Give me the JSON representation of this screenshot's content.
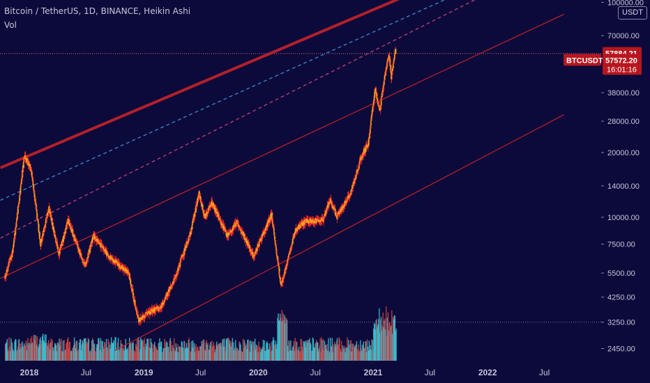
{
  "header": {
    "symbol_line": "Bitcoin / TetherUS, 1D, BINANCE, Heikin Ashi",
    "volume_label": "Vol"
  },
  "currency_badge": "USDT",
  "price_tags": {
    "high_value": "57884.21",
    "ticker": "BTCUSDT",
    "last_value": "57572.20",
    "countdown": "16:01:16"
  },
  "colors": {
    "background": "#0c0a3a",
    "channel_line": "#b3202a",
    "dashed_median": "#c0407a",
    "dashed_blue": "#3a8ad8",
    "candle_body": "#f0a020",
    "candle_outline": "#ff2a2a",
    "volume_up": "#3ec8d8",
    "volume_down": "#d04848",
    "axis_text": "#c8c6dc",
    "tag_red": "#b8161e"
  },
  "chart_data": {
    "type": "candlestick",
    "symbol": "Bitcoin / TetherUS",
    "interval": "1D",
    "exchange": "BINANCE",
    "style": "Heikin Ashi",
    "y_scale": "log",
    "ylim": [
      2200,
      100000
    ],
    "y_ticks": [
      "100000.00",
      "70000.00",
      "38000.00",
      "28000.00",
      "20000.00",
      "14000.00",
      "10000.00",
      "7500.00",
      "5500.00",
      "4250.00",
      "3250.00",
      "2450.00"
    ],
    "x_ticks": [
      "2018",
      "Jul",
      "2019",
      "Jul",
      "2020",
      "Jul",
      "2021",
      "Jul",
      "2022",
      "Jul"
    ],
    "price_key_points": [
      [
        "2017-10-15",
        5200
      ],
      [
        "2017-11-10",
        7000
      ],
      [
        "2017-12-17",
        19500
      ],
      [
        "2018-01-08",
        16500
      ],
      [
        "2018-02-06",
        7500
      ],
      [
        "2018-03-05",
        11000
      ],
      [
        "2018-04-06",
        6700
      ],
      [
        "2018-05-05",
        9700
      ],
      [
        "2018-06-28",
        5900
      ],
      [
        "2018-07-25",
        8200
      ],
      [
        "2018-09-15",
        6500
      ],
      [
        "2018-11-14",
        5500
      ],
      [
        "2018-12-15",
        3300
      ],
      [
        "2019-01-15",
        3600
      ],
      [
        "2019-02-25",
        3800
      ],
      [
        "2019-04-10",
        5200
      ],
      [
        "2019-05-31",
        8500
      ],
      [
        "2019-06-26",
        12900
      ],
      [
        "2019-07-15",
        10000
      ],
      [
        "2019-08-06",
        11800
      ],
      [
        "2019-09-24",
        8200
      ],
      [
        "2019-10-26",
        9500
      ],
      [
        "2019-12-17",
        6600
      ],
      [
        "2020-02-13",
        10300
      ],
      [
        "2020-03-13",
        4800
      ],
      [
        "2020-04-30",
        8800
      ],
      [
        "2020-06-02",
        9600
      ],
      [
        "2020-07-26",
        9700
      ],
      [
        "2020-08-17",
        12000
      ],
      [
        "2020-09-08",
        10100
      ],
      [
        "2020-10-21",
        12800
      ],
      [
        "2020-11-24",
        19000
      ],
      [
        "2020-12-17",
        22000
      ],
      [
        "2021-01-08",
        40000
      ],
      [
        "2021-01-22",
        31000
      ],
      [
        "2021-02-08",
        46000
      ],
      [
        "2021-02-21",
        57500
      ],
      [
        "2021-02-28",
        45000
      ],
      [
        "2021-03-13",
        60000
      ],
      [
        "2021-03-15",
        57572
      ]
    ],
    "last_price": 57572.2,
    "recent_high": 57884.21,
    "channel_lines": [
      {
        "style": "solid",
        "start": [
          "2017-10-01",
          17000
        ],
        "end": [
          "2021-04-01",
          105000
        ]
      },
      {
        "style": "dashed-blue",
        "start": [
          "2017-10-01",
          12000
        ],
        "end": [
          "2021-10-01",
          110000
        ]
      },
      {
        "style": "dashed",
        "start": [
          "2017-10-01",
          8000
        ],
        "end": [
          "2022-01-01",
          110000
        ]
      },
      {
        "style": "solid",
        "start": [
          "2017-10-01",
          5200
        ],
        "end": [
          "2022-09-01",
          88000
        ]
      },
      {
        "style": "solid",
        "start": [
          "2018-10-01",
          2400
        ],
        "end": [
          "2022-09-01",
          30000
        ]
      }
    ],
    "horizontal_levels": [
      57884.21,
      57572.2,
      3250
    ]
  }
}
